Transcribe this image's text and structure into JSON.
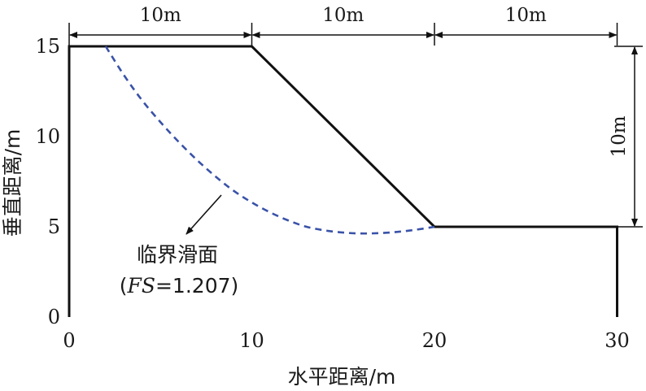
{
  "chart_data": {
    "type": "slope-stability-diagram",
    "xlabel": "水平距离/m",
    "ylabel": "垂直距离/m",
    "xlim": [
      0,
      30
    ],
    "ylim": [
      0,
      15
    ],
    "x_ticks": [
      "0",
      "10",
      "20",
      "30"
    ],
    "y_ticks": [
      "0",
      "5",
      "10",
      "15"
    ],
    "slope_profile": [
      [
        0,
        0
      ],
      [
        0,
        15
      ],
      [
        10,
        15
      ],
      [
        20,
        5
      ],
      [
        30,
        5
      ],
      [
        30,
        0
      ]
    ],
    "slip_surface": [
      [
        2,
        15
      ],
      [
        3,
        13.4
      ],
      [
        4,
        12.0
      ],
      [
        5,
        10.8
      ],
      [
        6,
        9.7
      ],
      [
        7,
        8.7
      ],
      [
        8,
        7.8
      ],
      [
        9,
        7.0
      ],
      [
        10,
        6.35
      ],
      [
        11,
        5.8
      ],
      [
        12,
        5.35
      ],
      [
        13,
        5.0
      ],
      [
        14,
        4.8
      ],
      [
        15,
        4.68
      ],
      [
        16,
        4.63
      ],
      [
        17,
        4.65
      ],
      [
        18,
        4.72
      ],
      [
        19,
        4.84
      ],
      [
        20,
        5
      ]
    ],
    "slip_surface_color": "#3a52a8",
    "slope_color": "#111111",
    "dimensions": {
      "top": [
        {
          "from": 0,
          "to": 10,
          "label": "10m"
        },
        {
          "from": 10,
          "to": 20,
          "label": "10m"
        },
        {
          "from": 20,
          "to": 30,
          "label": "10m"
        }
      ],
      "right": {
        "from": 5,
        "to": 15,
        "label": "10m"
      }
    },
    "annotation": {
      "line1": "临界滑面",
      "line2_open": "(",
      "line2_italic": "FS",
      "line2_rest": "=1.207)",
      "points_to": [
        8.7,
        7.0
      ]
    }
  }
}
